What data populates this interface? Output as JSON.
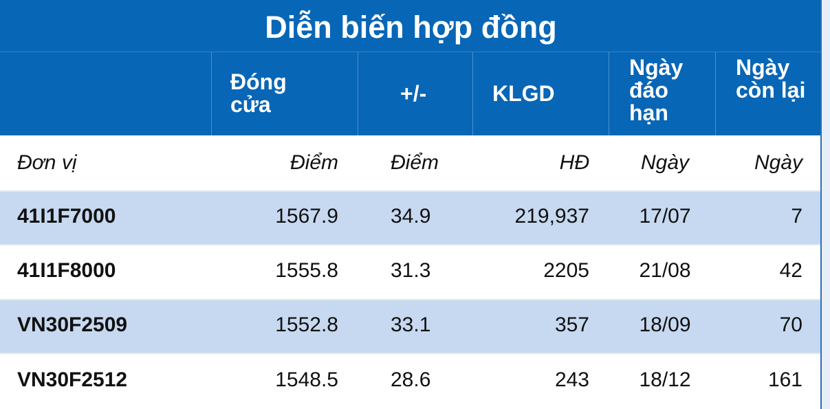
{
  "title": "Diễn biến hợp đồng",
  "table": {
    "header": [
      "",
      "Đóng cửa",
      "+/-",
      "KLGD",
      "Ngày đáo hạn",
      "Ngày còn lại"
    ],
    "units": [
      "Đơn vị",
      "Điểm",
      "Điểm",
      "HĐ",
      "Ngày",
      "Ngày"
    ],
    "rows": [
      [
        "41I1F7000",
        "1567.9",
        "34.9",
        "219,937",
        "17/07",
        "7"
      ],
      [
        "41I1F8000",
        "1555.8",
        "31.3",
        "2205",
        "21/08",
        "42"
      ],
      [
        "VN30F2509",
        "1552.8",
        "33.1",
        "357",
        "18/09",
        "70"
      ],
      [
        "VN30F2512",
        "1548.5",
        "28.6",
        "243",
        "18/12",
        "161"
      ]
    ]
  }
}
